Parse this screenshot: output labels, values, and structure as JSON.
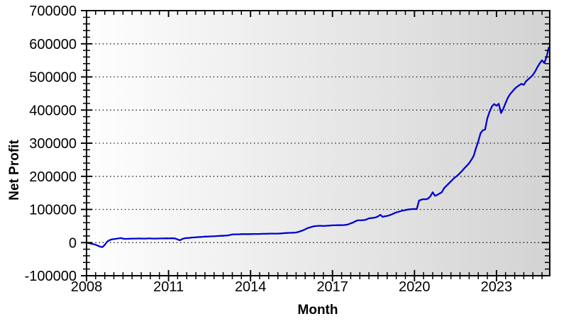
{
  "figure": {
    "background_color": "#ffffff",
    "plot_gradient_left": "#fefefe",
    "plot_gradient_right": "#d3d3d3",
    "line_color": "#0101d0",
    "axis_color": "#000000",
    "grid_color": "#000000"
  },
  "chart_data": {
    "type": "line",
    "title": "",
    "xlabel": "Month",
    "ylabel": "Net Profit",
    "legend": "none",
    "grid": "horizontal-dotted",
    "xlim": [
      2008,
      2024.95
    ],
    "ylim": [
      -100000,
      700000
    ],
    "y_major_step": 100000,
    "y_minor_step": 20000,
    "y_tick_labels": [
      "-100000",
      "0",
      "100000",
      "200000",
      "300000",
      "400000",
      "500000",
      "600000",
      "700000"
    ],
    "x_tick_labels": [
      "2008",
      "2011",
      "2014",
      "2017",
      "2020",
      "2023"
    ],
    "x_major_tick_years": [
      2008,
      2011,
      2014,
      2017,
      2020,
      2023
    ],
    "x_minor_step_years": 0.33333,
    "start_month": "2008-01",
    "months_per_point": 1,
    "series": [
      {
        "name": "Net Profit",
        "monthly_values": [
          0,
          -1500,
          -3000,
          -4500,
          -6500,
          -9500,
          -12500,
          -13500,
          -7000,
          2500,
          7000,
          9500,
          10500,
          11500,
          12500,
          13500,
          12000,
          11000,
          11500,
          11500,
          12000,
          12000,
          12000,
          12500,
          12000,
          12000,
          12000,
          12500,
          12500,
          12000,
          12000,
          12000,
          12500,
          12500,
          12500,
          13000,
          12500,
          13000,
          13000,
          12000,
          9500,
          7000,
          10500,
          13000,
          13500,
          14000,
          15000,
          15500,
          16000,
          16500,
          17000,
          17500,
          18000,
          18000,
          18500,
          19000,
          19000,
          19500,
          20000,
          20500,
          20500,
          21000,
          21500,
          23000,
          24500,
          25000,
          25000,
          25000,
          25500,
          25500,
          25500,
          25500,
          25500,
          26000,
          26000,
          26000,
          26000,
          26500,
          26500,
          26500,
          27000,
          27000,
          27000,
          27000,
          27000,
          27500,
          28000,
          28500,
          29000,
          29500,
          29500,
          30000,
          30500,
          32000,
          34500,
          37000,
          40000,
          43500,
          45500,
          47500,
          49500,
          50000,
          50500,
          50500,
          50000,
          50500,
          51000,
          51500,
          52000,
          52000,
          52500,
          52500,
          52500,
          53000,
          53500,
          55000,
          58000,
          60500,
          64000,
          67000,
          67000,
          67500,
          68000,
          70000,
          73000,
          74000,
          75000,
          76000,
          79000,
          84000,
          77500,
          79500,
          80500,
          82500,
          85000,
          88000,
          91000,
          93000,
          95000,
          96500,
          98000,
          99500,
          100500,
          101000,
          101500,
          101000,
          126500,
          129500,
          131000,
          130500,
          133000,
          140000,
          152000,
          141000,
          144000,
          148000,
          152000,
          164000,
          171000,
          178000,
          185000,
          192000,
          197500,
          203000,
          210000,
          217000,
          225000,
          232000,
          240000,
          250000,
          262000,
          285000,
          305000,
          330000,
          339000,
          341000,
          375000,
          395000,
          411000,
          418000,
          413000,
          419000,
          391000,
          404000,
          421000,
          437000,
          448000,
          456000,
          464000,
          470000,
          475000,
          479000,
          476000,
          487000,
          493000,
          499000,
          506000,
          517000,
          530000,
          541000,
          550000,
          542000,
          560000,
          589000
        ]
      }
    ]
  }
}
